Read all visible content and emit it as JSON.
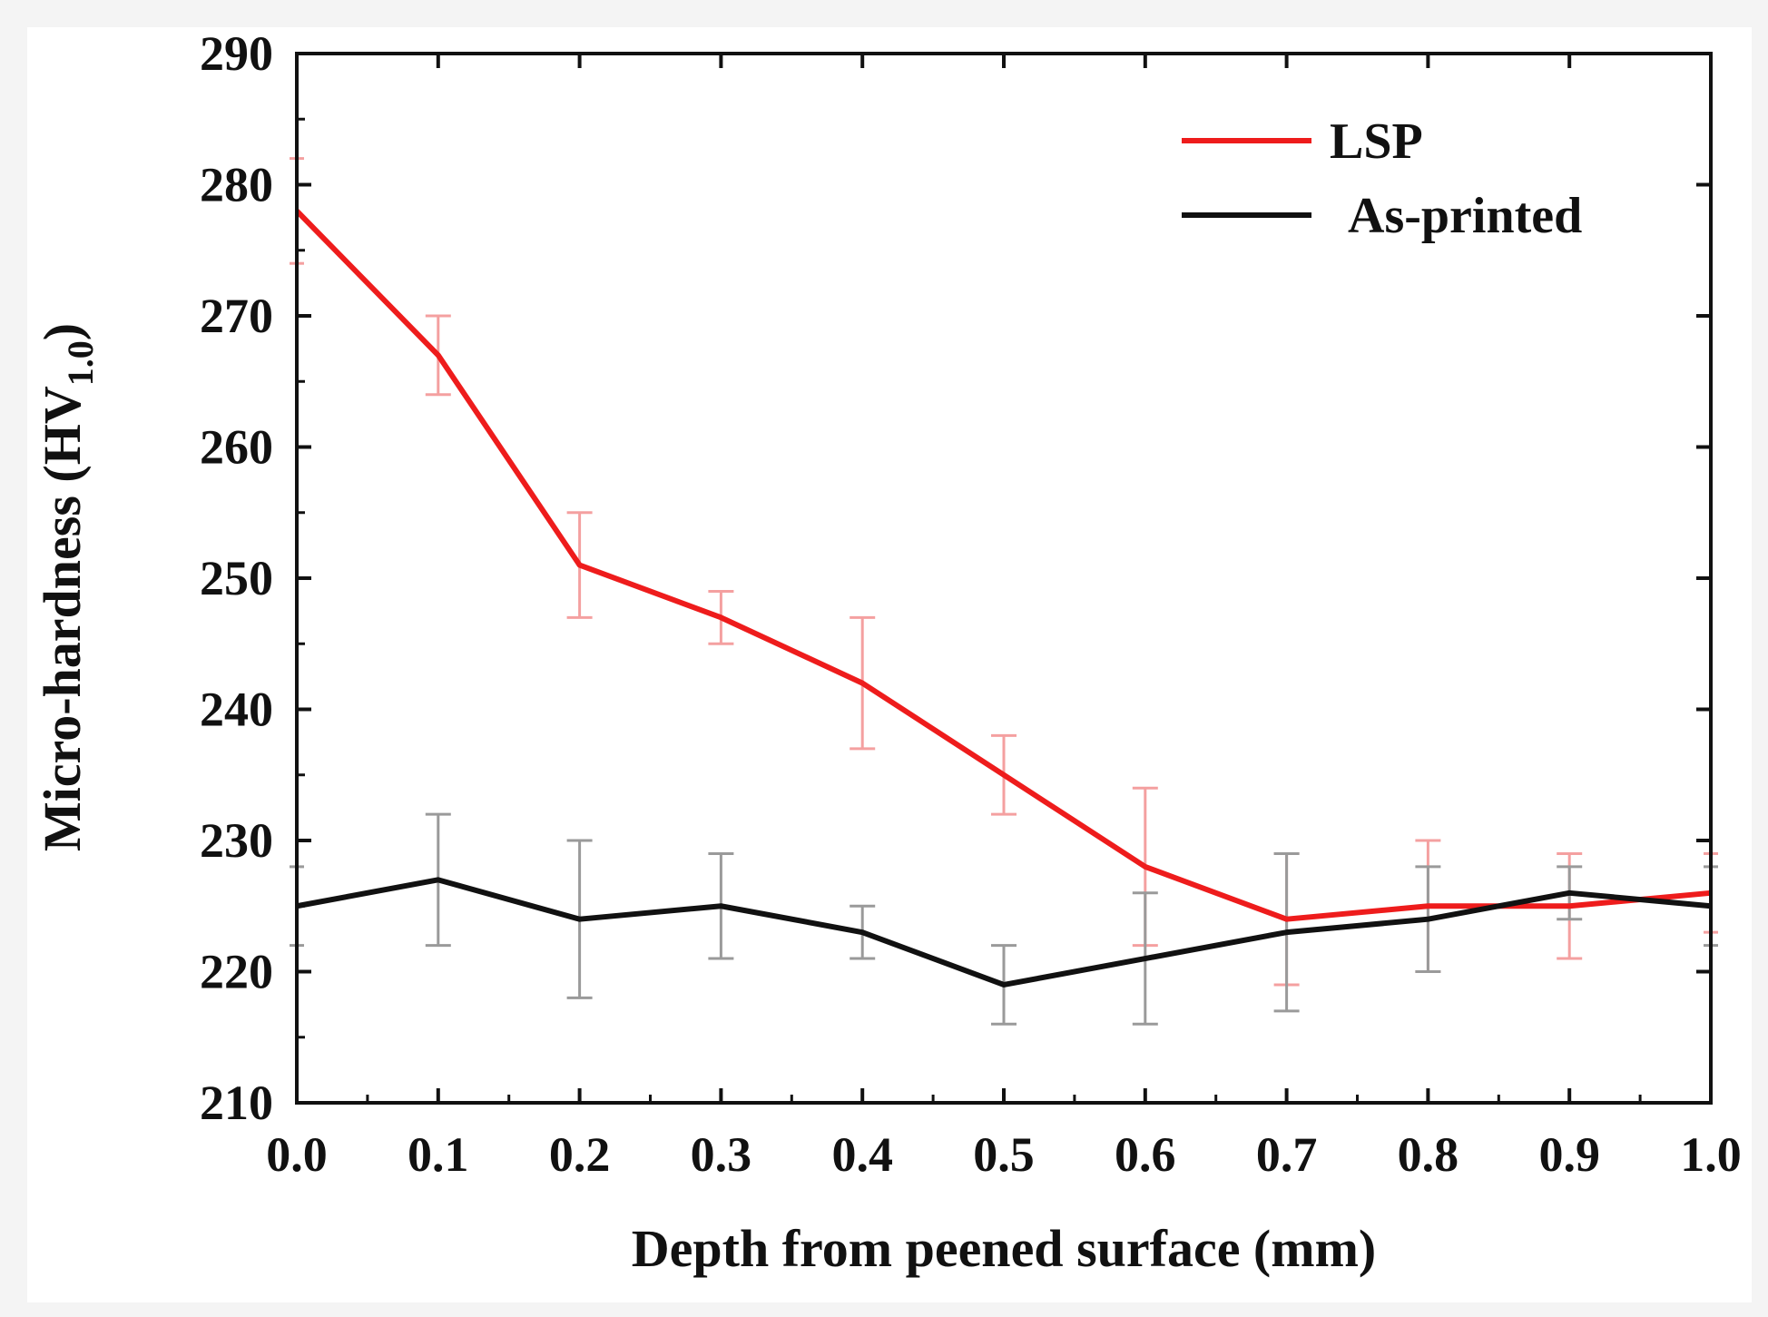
{
  "chart_data": {
    "type": "line",
    "title": "",
    "xlabel": "Depth from peened surface (mm)",
    "ylabel_main": "Micro-hardness (HV",
    "ylabel_sub": "1.0",
    "ylabel_close": ")",
    "xlim": [
      0.0,
      1.0
    ],
    "ylim": [
      210,
      290
    ],
    "xticks": [
      "0.0",
      "0.1",
      "0.2",
      "0.3",
      "0.4",
      "0.5",
      "0.6",
      "0.7",
      "0.8",
      "0.9",
      "1.0"
    ],
    "yticks": [
      "210",
      "220",
      "230",
      "240",
      "250",
      "260",
      "270",
      "280",
      "290"
    ],
    "x": [
      0.0,
      0.1,
      0.2,
      0.3,
      0.4,
      0.5,
      0.6,
      0.7,
      0.8,
      0.9,
      1.0
    ],
    "legend_position": "top-right",
    "grid": false,
    "series": [
      {
        "name": "LSP",
        "color": "#ee1c1c",
        "error_color": "#f4a0a0",
        "values": [
          278,
          267,
          251,
          247,
          242,
          235,
          228,
          224,
          225,
          225,
          226
        ],
        "errors": [
          4,
          3,
          4,
          2,
          5,
          3,
          6,
          5,
          5,
          4,
          3
        ]
      },
      {
        "name": "As-printed",
        "color": "#111111",
        "error_color": "#9a9a9a",
        "values": [
          225,
          227,
          224,
          225,
          223,
          219,
          221,
          223,
          224,
          226,
          225
        ],
        "errors": [
          3,
          5,
          6,
          4,
          2,
          3,
          5,
          6,
          4,
          2,
          3
        ]
      }
    ]
  }
}
